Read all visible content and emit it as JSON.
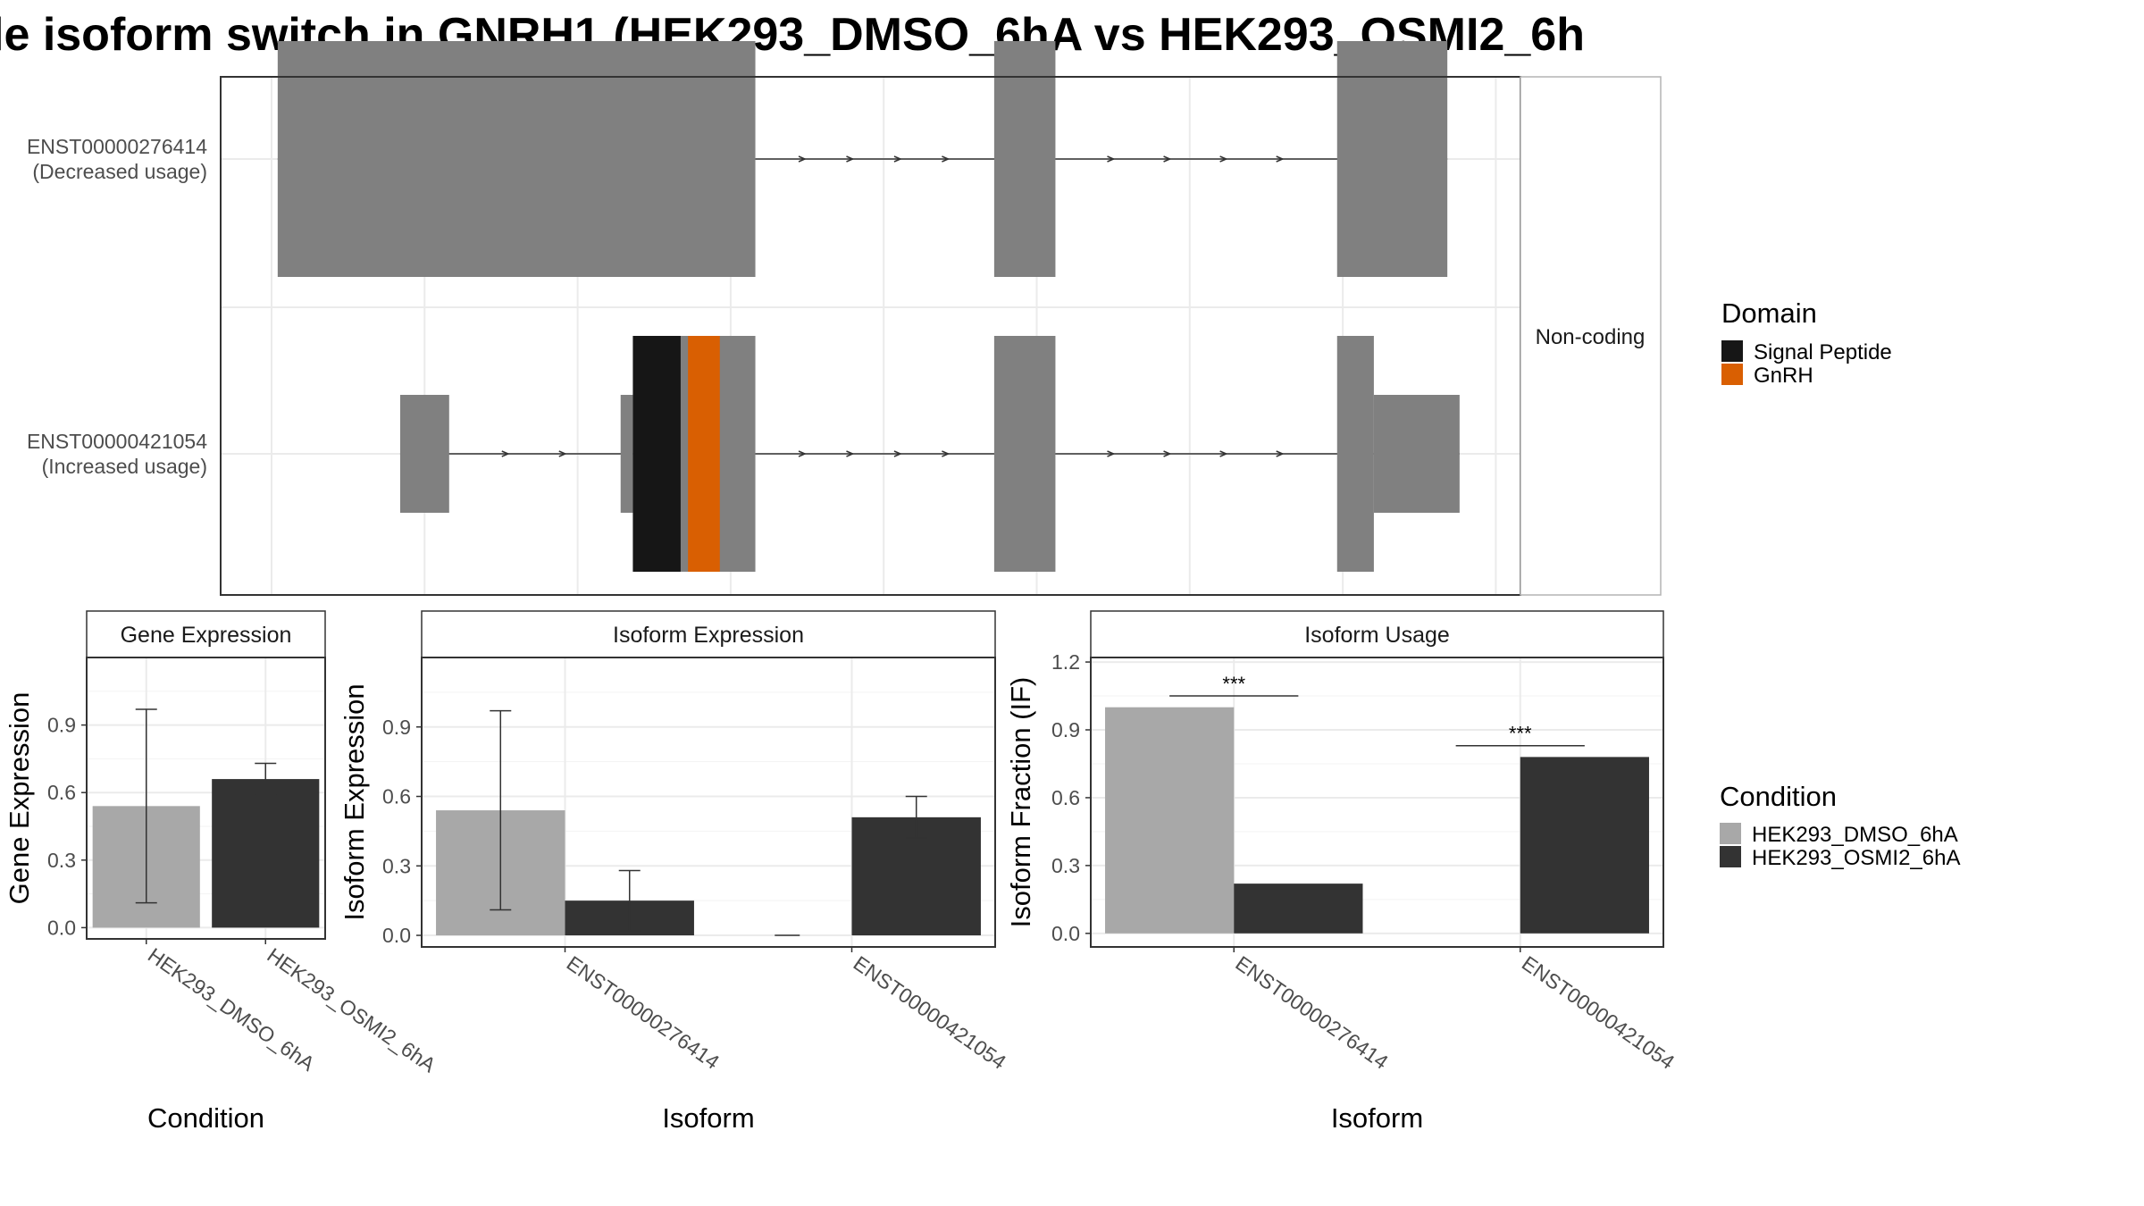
{
  "title": "le isoform switch in GNRH1 (HEK293_DMSO_6hA vs HEK293_OSMI2_6h",
  "colors": {
    "exon": "#808080",
    "signal_peptide": "#161616",
    "gnrh": "#d95f02",
    "dmso": "#a8a8a8",
    "osmi2": "#333333",
    "grid": "#ebebeb"
  },
  "chart_data": [
    {
      "type": "gene-structure",
      "panel_strip": "Non-coding",
      "xlim": [
        0,
        100
      ],
      "transcripts": [
        {
          "id": "ENST00000276414",
          "label": "ENST00000276414",
          "note": "(Decreased usage)",
          "exons": [
            [
              0.5,
              39.5
            ],
            [
              59,
              64
            ],
            [
              87,
              96
            ]
          ],
          "domains": []
        },
        {
          "id": "ENST00000421054",
          "label": "ENST00000421054",
          "note": "(Increased usage)",
          "utr_exons": [
            [
              10.5,
              14.5
            ],
            [
              28.5,
              29.5
            ],
            [
              90,
              97
            ]
          ],
          "exons": [
            [
              29.5,
              39.5
            ],
            [
              59,
              64
            ],
            [
              87,
              90
            ]
          ],
          "domains": [
            {
              "name": "Signal Peptide",
              "range": [
                29.5,
                33.4
              ]
            },
            {
              "name": "GnRH",
              "range": [
                34,
                36.6
              ]
            }
          ]
        }
      ],
      "legend": {
        "title": "Domain",
        "entries": [
          "Signal Peptide",
          "GnRH"
        ]
      }
    },
    {
      "type": "bar",
      "strip": "Gene Expression",
      "xlabel": "Condition",
      "ylabel": "Gene Expression",
      "ylim": [
        -0.05,
        1.2
      ],
      "yticks": [
        "0.0",
        "0.3",
        "0.6",
        "0.9"
      ],
      "categories": [
        "HEK293_DMSO_6hA",
        "HEK293_OSMI2_6hA"
      ],
      "values": [
        0.54,
        0.66
      ],
      "errors": [
        [
          0.11,
          0.97
        ],
        [
          0.59,
          0.73
        ]
      ]
    },
    {
      "type": "bar",
      "strip": "Isoform Expression",
      "xlabel": "Isoform",
      "ylabel": "Isoform Expression",
      "ylim": [
        -0.05,
        1.2
      ],
      "yticks": [
        "0.0",
        "0.3",
        "0.6",
        "0.9"
      ],
      "categories": [
        "ENST00000276414",
        "ENST00000421054"
      ],
      "series": [
        {
          "condition": "HEK293_DMSO_6hA",
          "values": [
            0.54,
            0.0
          ],
          "errors": [
            [
              0.11,
              0.97
            ],
            [
              0.0,
              0.0
            ]
          ]
        },
        {
          "condition": "HEK293_OSMI2_6hA",
          "values": [
            0.15,
            0.51
          ],
          "errors": [
            [
              0.02,
              0.28
            ],
            [
              0.42,
              0.6
            ]
          ]
        }
      ]
    },
    {
      "type": "bar",
      "strip": "Isoform Usage",
      "xlabel": "Isoform",
      "ylabel": "Isoform Fraction (IF)",
      "ylim": [
        -0.06,
        1.22
      ],
      "yticks": [
        "0.0",
        "0.3",
        "0.6",
        "0.9",
        "1.2"
      ],
      "categories": [
        "ENST00000276414",
        "ENST00000421054"
      ],
      "series": [
        {
          "condition": "HEK293_DMSO_6hA",
          "values": [
            1.0,
            0.0
          ]
        },
        {
          "condition": "HEK293_OSMI2_6hA",
          "values": [
            0.22,
            0.78
          ]
        }
      ],
      "significance": [
        {
          "category": "ENST00000276414",
          "label": "***",
          "y": 1.05
        },
        {
          "category": "ENST00000421054",
          "label": "***",
          "y": 0.83
        }
      ]
    }
  ],
  "condition_legend": {
    "title": "Condition",
    "entries": [
      "HEK293_DMSO_6hA",
      "HEK293_OSMI2_6hA"
    ]
  }
}
